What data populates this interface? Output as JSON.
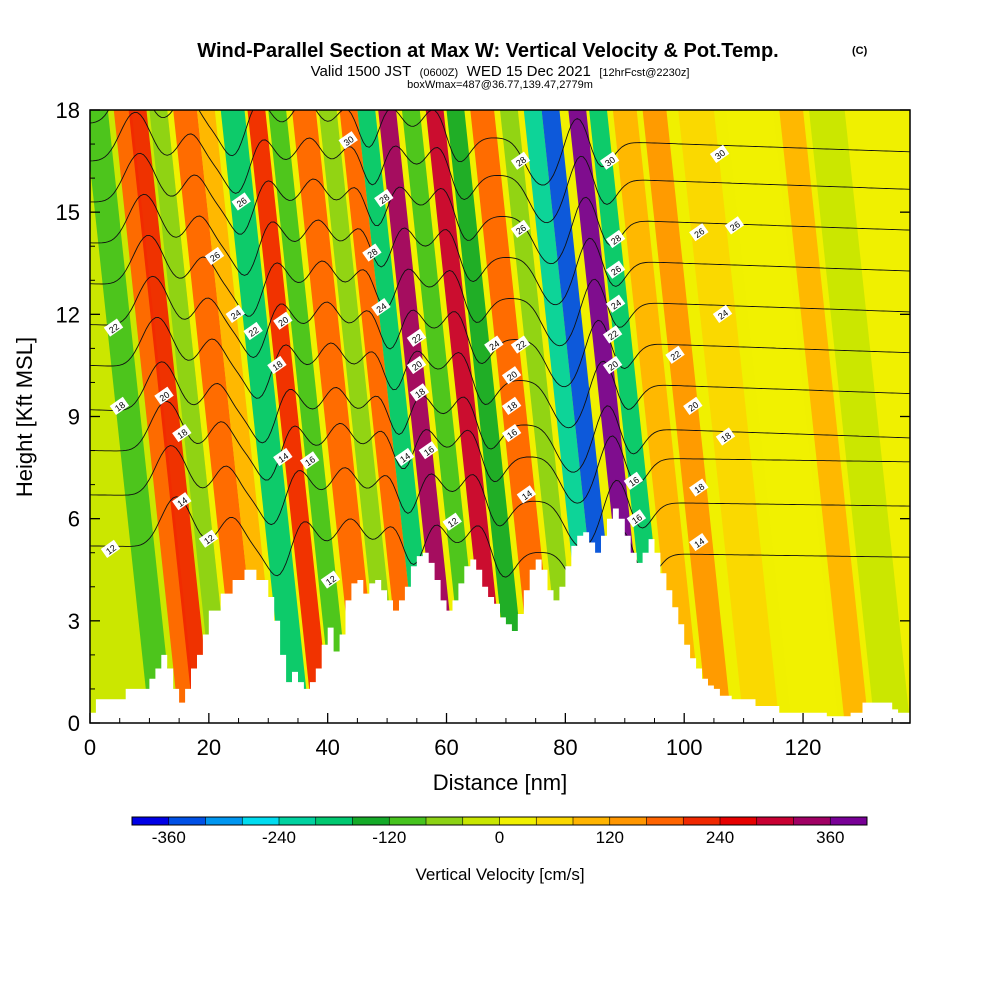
{
  "chart_data": {
    "type": "heatmap",
    "title": "Wind-Parallel Section at Max W: Vertical Velocity & Pot.Temp.",
    "title_mark": "(C)",
    "subtitle_parts": [
      "Valid 1500 JST",
      "(0600Z)",
      "WED 15 Dec 2021",
      "[12hrFcst@2230z]"
    ],
    "subtitle2": "boxWmax=487@36.77,139.47,2779m",
    "xlabel": "Distance [nm]",
    "ylabel": "Height [Kft MSL]",
    "xlim": [
      0,
      138
    ],
    "ylim": [
      0,
      18
    ],
    "x_ticks": [
      0,
      20,
      40,
      60,
      80,
      100,
      120
    ],
    "y_ticks": [
      0,
      3,
      6,
      9,
      12,
      15,
      18
    ],
    "grid": false,
    "colorbar": {
      "title": "Vertical Velocity [cm/s]",
      "tick_values": [
        "-360",
        "-240",
        "-120",
        "0",
        "120",
        "240",
        "360"
      ],
      "colors": [
        "#0000e6",
        "#0050e6",
        "#0096f0",
        "#00dcf0",
        "#00d2a0",
        "#00c870",
        "#14aa28",
        "#46c31e",
        "#8cd214",
        "#c8e600",
        "#f0f000",
        "#fad700",
        "#ffb400",
        "#ff9600",
        "#ff6400",
        "#f02800",
        "#e60000",
        "#c80032",
        "#a00064",
        "#780096"
      ]
    },
    "velocity_bands": [
      {
        "x": 0,
        "w": 24,
        "v": -60
      },
      {
        "x": 10,
        "w": 4,
        "v": -110
      },
      {
        "x": 15,
        "w": 3,
        "v": 150
      },
      {
        "x": 17.5,
        "w": 3,
        "v": 190
      },
      {
        "x": 21,
        "w": 3,
        "v": -90
      },
      {
        "x": 25,
        "w": 4,
        "v": 170
      },
      {
        "x": 29,
        "w": 3,
        "v": 80
      },
      {
        "x": 33,
        "w": 4,
        "v": -200
      },
      {
        "x": 37.5,
        "w": 3,
        "v": 200
      },
      {
        "x": 41,
        "w": 3,
        "v": -120
      },
      {
        "x": 45,
        "w": 4,
        "v": 150
      },
      {
        "x": 49.5,
        "w": 3,
        "v": -100
      },
      {
        "x": 53,
        "w": 3,
        "v": 150
      },
      {
        "x": 56,
        "w": 3,
        "v": -210
      },
      {
        "x": 59.5,
        "w": 3,
        "v": 310
      },
      {
        "x": 63.5,
        "w": 3,
        "v": -110
      },
      {
        "x": 67.5,
        "w": 3,
        "v": 270
      },
      {
        "x": 71,
        "w": 3,
        "v": -150
      },
      {
        "x": 75,
        "w": 4,
        "v": 140
      },
      {
        "x": 80,
        "w": 3,
        "v": -90
      },
      {
        "x": 84,
        "w": 3,
        "v": -260
      },
      {
        "x": 87,
        "w": 3,
        "v": -370
      },
      {
        "x": 91.5,
        "w": 3,
        "v": 380
      },
      {
        "x": 95,
        "w": 3,
        "v": -200
      },
      {
        "x": 99,
        "w": 4,
        "v": 80
      },
      {
        "x": 104,
        "w": 4,
        "v": 110
      },
      {
        "x": 110,
        "w": 6,
        "v": 40
      },
      {
        "x": 118,
        "w": 8,
        "v": 10
      },
      {
        "x": 127,
        "w": 4,
        "v": 90
      },
      {
        "x": 132,
        "w": 6,
        "v": -50
      }
    ],
    "terrain": [
      [
        0,
        0.3
      ],
      [
        1,
        0.7
      ],
      [
        5,
        0.7
      ],
      [
        6,
        1.0
      ],
      [
        9,
        1.0
      ],
      [
        10,
        1.3
      ],
      [
        11,
        1.6
      ],
      [
        12,
        2.0
      ],
      [
        13,
        1.6
      ],
      [
        14,
        1.0
      ],
      [
        15,
        0.6
      ],
      [
        16,
        1.0
      ],
      [
        17,
        1.6
      ],
      [
        18,
        2.0
      ],
      [
        19,
        2.6
      ],
      [
        20,
        3.3
      ],
      [
        22,
        3.8
      ],
      [
        24,
        4.2
      ],
      [
        26,
        4.5
      ],
      [
        28,
        4.2
      ],
      [
        30,
        3.7
      ],
      [
        31,
        3.0
      ],
      [
        32,
        2.0
      ],
      [
        33,
        1.2
      ],
      [
        34,
        1.5
      ],
      [
        35,
        1.2
      ],
      [
        36,
        1.0
      ],
      [
        37,
        1.2
      ],
      [
        38,
        1.6
      ],
      [
        39,
        2.3
      ],
      [
        40,
        2.8
      ],
      [
        41,
        2.1
      ],
      [
        42,
        2.6
      ],
      [
        43,
        3.6
      ],
      [
        44,
        4.1
      ],
      [
        45,
        4.2
      ],
      [
        46,
        3.8
      ],
      [
        47,
        4.1
      ],
      [
        48,
        4.2
      ],
      [
        49,
        3.9
      ],
      [
        50,
        3.6
      ],
      [
        51,
        3.3
      ],
      [
        52,
        3.6
      ],
      [
        53,
        4.0
      ],
      [
        54,
        4.6
      ],
      [
        55,
        4.9
      ],
      [
        56,
        5.0
      ],
      [
        57,
        4.7
      ],
      [
        58,
        4.2
      ],
      [
        59,
        3.6
      ],
      [
        60,
        3.3
      ],
      [
        61,
        3.6
      ],
      [
        62,
        4.1
      ],
      [
        63,
        4.6
      ],
      [
        64,
        4.8
      ],
      [
        65,
        4.5
      ],
      [
        66,
        4.0
      ],
      [
        67,
        3.7
      ],
      [
        68,
        3.5
      ],
      [
        69,
        3.1
      ],
      [
        70,
        2.9
      ],
      [
        71,
        2.7
      ],
      [
        72,
        3.2
      ],
      [
        73,
        3.9
      ],
      [
        74,
        4.5
      ],
      [
        75,
        4.8
      ],
      [
        76,
        4.5
      ],
      [
        77,
        3.9
      ],
      [
        78,
        3.6
      ],
      [
        79,
        4.0
      ],
      [
        80,
        4.6
      ],
      [
        81,
        5.2
      ],
      [
        82,
        5.5
      ],
      [
        83,
        5.6
      ],
      [
        84,
        5.3
      ],
      [
        85,
        5.0
      ],
      [
        86,
        5.5
      ],
      [
        87,
        6.0
      ],
      [
        88,
        6.3
      ],
      [
        89,
        6.0
      ],
      [
        90,
        5.5
      ],
      [
        91,
        5.0
      ],
      [
        92,
        4.7
      ],
      [
        93,
        5.0
      ],
      [
        94,
        5.4
      ],
      [
        95,
        5.0
      ],
      [
        96,
        4.4
      ],
      [
        97,
        3.9
      ],
      [
        98,
        3.4
      ],
      [
        99,
        2.9
      ],
      [
        100,
        2.3
      ],
      [
        101,
        1.9
      ],
      [
        102,
        1.6
      ],
      [
        103,
        1.3
      ],
      [
        104,
        1.1
      ],
      [
        105,
        1.0
      ],
      [
        106,
        0.8
      ],
      [
        108,
        0.7
      ],
      [
        112,
        0.5
      ],
      [
        116,
        0.3
      ],
      [
        122,
        0.3
      ],
      [
        124,
        0.2
      ],
      [
        128,
        0.3
      ],
      [
        130,
        0.6
      ],
      [
        133,
        0.6
      ],
      [
        135,
        0.4
      ],
      [
        136,
        0.3
      ],
      [
        138,
        0.3
      ]
    ],
    "theta_levels": [
      {
        "value": 12,
        "y0": 5.2
      },
      {
        "value": 14,
        "y0": 6.7
      },
      {
        "value": 16,
        "y0": 8.0
      },
      {
        "value": 18,
        "y0": 9.2
      },
      {
        "value": 20,
        "y0": 10.5
      },
      {
        "value": 22,
        "y0": 11.7
      },
      {
        "value": 24,
        "y0": 12.9
      },
      {
        "value": 26,
        "y0": 14.1
      },
      {
        "value": 28,
        "y0": 15.3
      },
      {
        "value": 30,
        "y0": 16.5
      },
      {
        "value": 32,
        "y0": 17.6
      }
    ],
    "contour_labels": [
      {
        "text": "12",
        "x": 3.5,
        "y": 5.1
      },
      {
        "text": "18",
        "x": 5,
        "y": 9.3
      },
      {
        "text": "22",
        "x": 4,
        "y": 11.6
      },
      {
        "text": "20",
        "x": 12.5,
        "y": 9.6
      },
      {
        "text": "18",
        "x": 15.5,
        "y": 8.5
      },
      {
        "text": "14",
        "x": 15.5,
        "y": 6.5
      },
      {
        "text": "12",
        "x": 20,
        "y": 5.4
      },
      {
        "text": "26",
        "x": 25.5,
        "y": 15.3
      },
      {
        "text": "26",
        "x": 21,
        "y": 13.7
      },
      {
        "text": "24",
        "x": 24.5,
        "y": 12.0
      },
      {
        "text": "22",
        "x": 27.5,
        "y": 11.5
      },
      {
        "text": "20",
        "x": 32.5,
        "y": 11.8
      },
      {
        "text": "18",
        "x": 31.5,
        "y": 10.5
      },
      {
        "text": "14",
        "x": 32.5,
        "y": 7.8
      },
      {
        "text": "16",
        "x": 37,
        "y": 7.7
      },
      {
        "text": "12",
        "x": 40.5,
        "y": 4.2
      },
      {
        "text": "30",
        "x": 43.5,
        "y": 17.1
      },
      {
        "text": "28",
        "x": 49.5,
        "y": 15.4
      },
      {
        "text": "28",
        "x": 47.5,
        "y": 13.8
      },
      {
        "text": "24",
        "x": 49,
        "y": 12.2
      },
      {
        "text": "22",
        "x": 55,
        "y": 11.3
      },
      {
        "text": "20",
        "x": 55,
        "y": 10.5
      },
      {
        "text": "18",
        "x": 55.5,
        "y": 9.7
      },
      {
        "text": "14",
        "x": 53,
        "y": 7.8
      },
      {
        "text": "16",
        "x": 57,
        "y": 8.0
      },
      {
        "text": "12",
        "x": 61,
        "y": 5.9
      },
      {
        "text": "28",
        "x": 72.5,
        "y": 16.5
      },
      {
        "text": "26",
        "x": 72.5,
        "y": 14.5
      },
      {
        "text": "24",
        "x": 68,
        "y": 11.1
      },
      {
        "text": "22",
        "x": 72.5,
        "y": 11.1
      },
      {
        "text": "20",
        "x": 71,
        "y": 10.2
      },
      {
        "text": "18",
        "x": 71,
        "y": 9.3
      },
      {
        "text": "16",
        "x": 71,
        "y": 8.5
      },
      {
        "text": "14",
        "x": 73.5,
        "y": 6.7
      },
      {
        "text": "30",
        "x": 87.5,
        "y": 16.5
      },
      {
        "text": "28",
        "x": 88.5,
        "y": 14.2
      },
      {
        "text": "26",
        "x": 88.5,
        "y": 13.3
      },
      {
        "text": "24",
        "x": 88.5,
        "y": 12.3
      },
      {
        "text": "22",
        "x": 88,
        "y": 11.4
      },
      {
        "text": "20",
        "x": 88,
        "y": 10.5
      },
      {
        "text": "16",
        "x": 91.5,
        "y": 7.1
      },
      {
        "text": "16",
        "x": 92,
        "y": 6.0
      },
      {
        "text": "30",
        "x": 106,
        "y": 16.7
      },
      {
        "text": "26",
        "x": 102.5,
        "y": 14.4
      },
      {
        "text": "26",
        "x": 108.5,
        "y": 14.6
      },
      {
        "text": "24",
        "x": 106.5,
        "y": 12.0
      },
      {
        "text": "22",
        "x": 98.5,
        "y": 10.8
      },
      {
        "text": "20",
        "x": 101.5,
        "y": 9.3
      },
      {
        "text": "18",
        "x": 107,
        "y": 8.4
      },
      {
        "text": "18",
        "x": 102.5,
        "y": 6.9
      },
      {
        "text": "14",
        "x": 102.5,
        "y": 5.3
      }
    ]
  }
}
